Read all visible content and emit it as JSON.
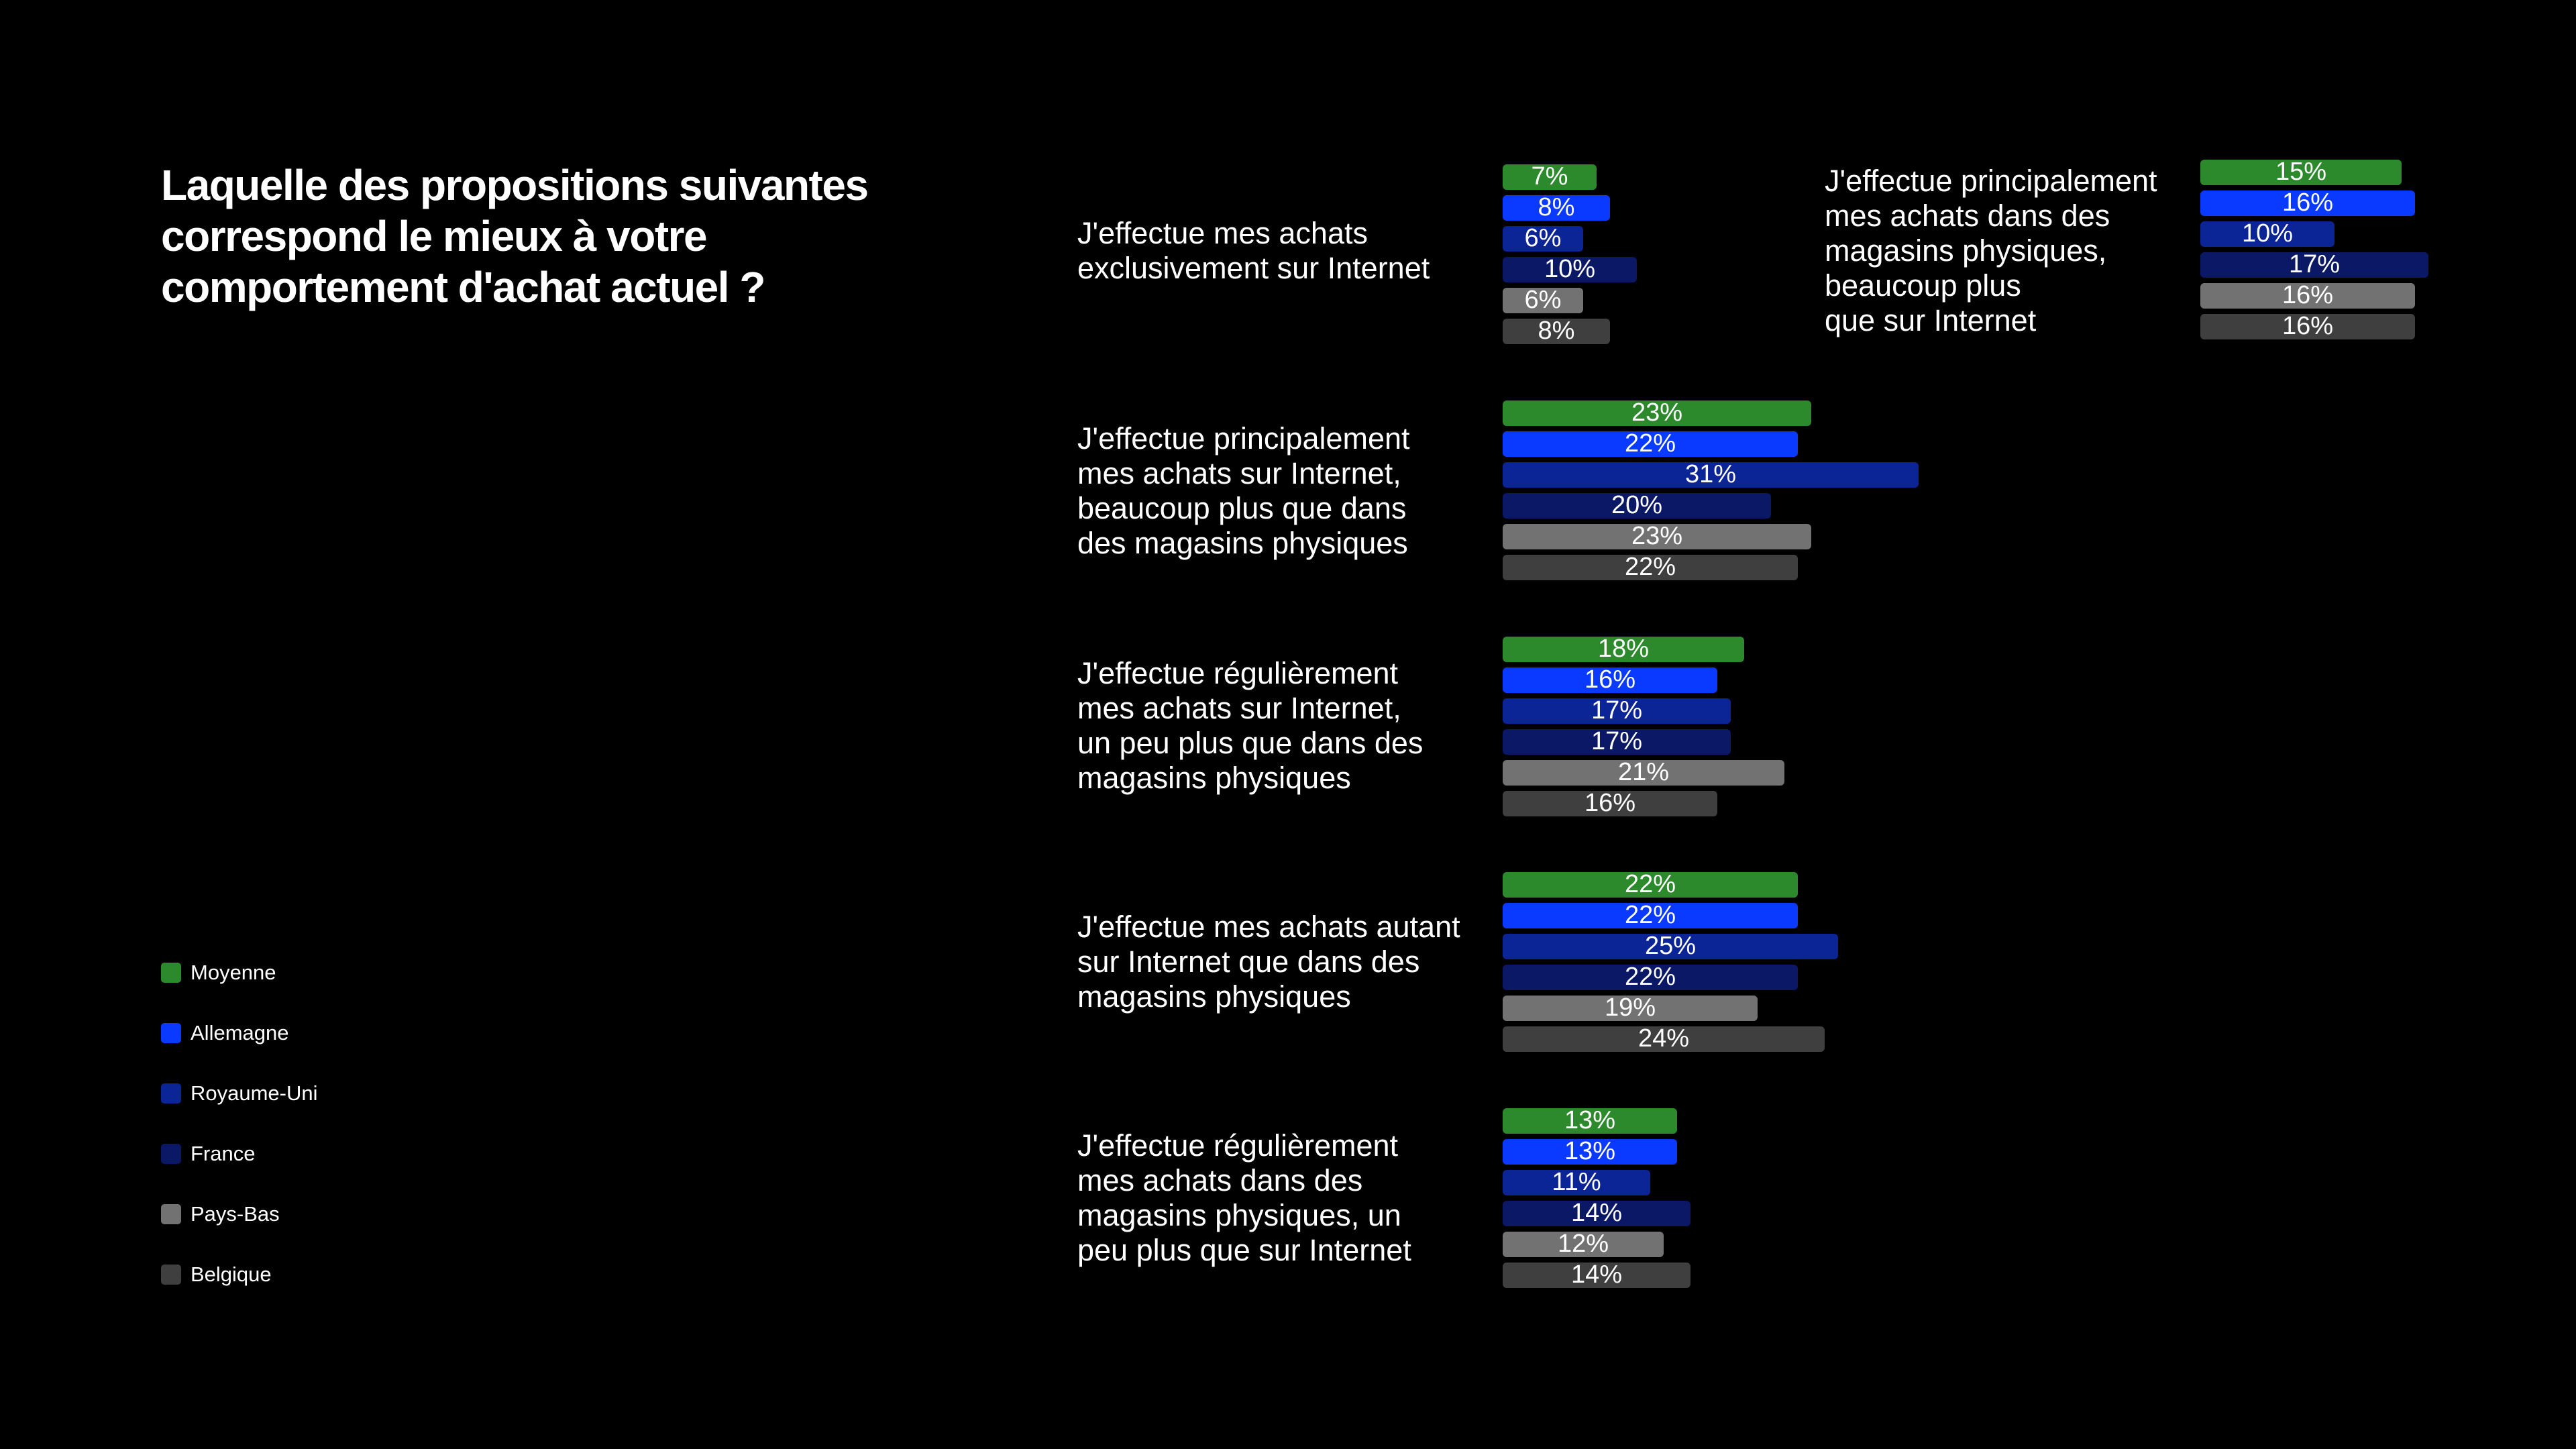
{
  "chart_data": {
    "type": "bar",
    "orientation": "horizontal",
    "title": "Laquelle des propositions suivantes correspond le mieux à votre comportement d'achat actuel ?",
    "value_suffix": "%",
    "series": [
      {
        "name": "Moyenne",
        "color": "#2c8a2c"
      },
      {
        "name": "Allemagne",
        "color": "#0a3aff"
      },
      {
        "name": "Royaume-Uni",
        "color": "#0b2496"
      },
      {
        "name": "France",
        "color": "#0a1866"
      },
      {
        "name": "Pays-Bas",
        "color": "#727272"
      },
      {
        "name": "Belgique",
        "color": "#3f3f3f"
      }
    ],
    "categories": [
      {
        "label": "J'effectue mes achats\nexclusivement sur Internet",
        "values": [
          7,
          8,
          6,
          10,
          6,
          8
        ]
      },
      {
        "label": "J'effectue principalement\nmes achats dans des\nmagasins physiques,\nbeaucoup plus\nque sur Internet",
        "values": [
          15,
          16,
          10,
          17,
          16,
          16
        ]
      },
      {
        "label": "J'effectue principalement\nmes achats sur Internet,\nbeaucoup plus que dans\ndes magasins physiques",
        "values": [
          23,
          22,
          31,
          20,
          23,
          22
        ]
      },
      {
        "label": "J'effectue régulièrement\nmes achats sur Internet,\nun peu plus que dans des\nmagasins physiques",
        "values": [
          18,
          16,
          17,
          17,
          21,
          16
        ]
      },
      {
        "label": "J'effectue mes achats autant\nsur Internet que dans des\nmagasins physiques",
        "values": [
          22,
          22,
          25,
          22,
          19,
          24
        ]
      },
      {
        "label": "J'effectue régulièrement\nmes achats dans des\nmagasins physiques, un\npeu plus que sur Internet",
        "values": [
          13,
          13,
          11,
          14,
          12,
          14
        ]
      }
    ]
  }
}
